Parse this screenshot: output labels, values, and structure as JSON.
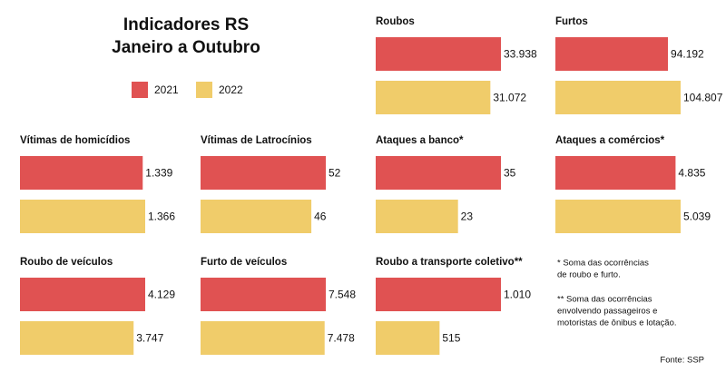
{
  "title": [
    "Indicadores RS",
    "Janeiro a Outubro"
  ],
  "legend": [
    {
      "name": "2021",
      "color": "#e05252"
    },
    {
      "name": "2022",
      "color": "#f0cc6a"
    }
  ],
  "chart_data": [
    {
      "type": "bar",
      "title": "Roubos",
      "values": [
        33938,
        31072
      ],
      "value_labels": [
        "33.938",
        "31.072"
      ]
    },
    {
      "type": "bar",
      "title": "Furtos",
      "values": [
        94192,
        104807
      ],
      "value_labels": [
        "94.192",
        "104.807"
      ]
    },
    {
      "type": "bar",
      "title": "Vítimas de homicídios",
      "values": [
        1339,
        1366
      ],
      "value_labels": [
        "1.339",
        "1.366"
      ]
    },
    {
      "type": "bar",
      "title": "Vítimas de Latrocínios",
      "values": [
        52,
        46
      ]
    },
    {
      "type": "bar",
      "title": "Ataques a banco*",
      "values": [
        35,
        23
      ]
    },
    {
      "type": "bar",
      "title": "Ataques a comércios*",
      "values": [
        4835,
        5039
      ],
      "value_labels": [
        "4.835",
        "5.039"
      ]
    },
    {
      "type": "bar",
      "title": "Roubo de veículos",
      "values": [
        4129,
        3747
      ],
      "value_labels": [
        "4.129",
        "3.747"
      ]
    },
    {
      "type": "bar",
      "title": "Furto de veículos",
      "values": [
        7548,
        7478
      ],
      "value_labels": [
        "7.548",
        "7.478"
      ]
    },
    {
      "type": "bar",
      "title": "Roubo a transporte coletivo**",
      "values": [
        1010,
        515
      ],
      "value_labels": [
        "1.010",
        "515"
      ]
    }
  ],
  "notes": [
    "* Soma das ocorrências",
    "de roubo e furto.",
    "** Soma das ocorrências",
    "envolvendo passageiros e",
    "motoristas de ônibus e lotação."
  ],
  "source": "Fonte: SSP"
}
